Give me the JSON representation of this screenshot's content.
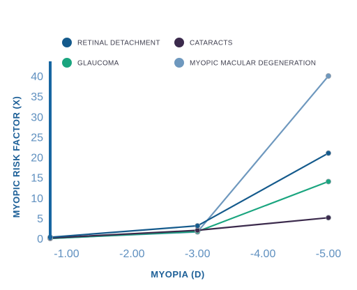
{
  "chart_data": {
    "type": "line",
    "title": "",
    "xlabel": "MYOPIA (D)",
    "ylabel": "MYOPIC RISK FACTOR (X)",
    "x": [
      -0.75,
      -3.0,
      -5.0
    ],
    "x_ticks": [
      -1.0,
      -2.0,
      -3.0,
      -4.0,
      -5.0
    ],
    "x_tick_labels": [
      "-1.00",
      "-2.00",
      "-3.00",
      "-4.00",
      "-5.00"
    ],
    "xlim": [
      -0.75,
      -5.0
    ],
    "ylim": [
      0,
      40
    ],
    "y_ticks": [
      0,
      5,
      10,
      15,
      20,
      25,
      30,
      35,
      40
    ],
    "y_tick_labels": [
      "0",
      "5",
      "10",
      "15",
      "20",
      "25",
      "30",
      "35",
      "40"
    ],
    "grid": false,
    "legend_position": "top",
    "series": [
      {
        "name": "RETINAL DETACHMENT",
        "color": "#145a8c",
        "values": [
          0.3,
          3.1,
          21.0
        ]
      },
      {
        "name": "CATARACTS",
        "color": "#3b2a4c",
        "values": [
          0.1,
          2.0,
          5.1
        ]
      },
      {
        "name": "GLAUCOMA",
        "color": "#1aa57f",
        "values": [
          0.0,
          1.7,
          14.0
        ]
      },
      {
        "name": "MYOPIC MACULAR DEGENERATION",
        "color": "#6e98be",
        "values": [
          0.0,
          1.6,
          40.0
        ]
      }
    ],
    "axis_color": "#1766a1",
    "tick_label_color": "#5e8fbf",
    "axis_label_color": "#1c5f97",
    "legend_text_color": "#3f3f4f"
  }
}
